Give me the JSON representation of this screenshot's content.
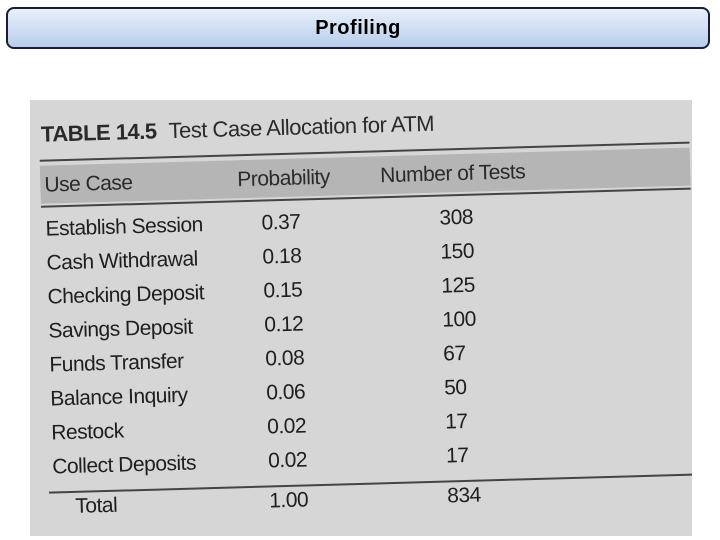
{
  "slide": {
    "title": "Profiling"
  },
  "table": {
    "caption_label": "TABLE 14.5",
    "caption_text": "Test Case Allocation for ATM",
    "headers": [
      "Use Case",
      "Probability",
      "Number of Tests"
    ],
    "rows": [
      [
        "Establish Session",
        "0.37",
        "308"
      ],
      [
        "Cash Withdrawal",
        "0.18",
        "150"
      ],
      [
        "Checking Deposit",
        "0.15",
        "125"
      ],
      [
        "Savings Deposit",
        "0.12",
        "100"
      ],
      [
        "Funds Transfer",
        "0.08",
        "67"
      ],
      [
        "Balance Inquiry",
        "0.06",
        "50"
      ],
      [
        "Restock",
        "0.02",
        "17"
      ],
      [
        "Collect Deposits",
        "0.02",
        "17"
      ]
    ],
    "total": [
      "Total",
      "1.00",
      "834"
    ]
  }
}
